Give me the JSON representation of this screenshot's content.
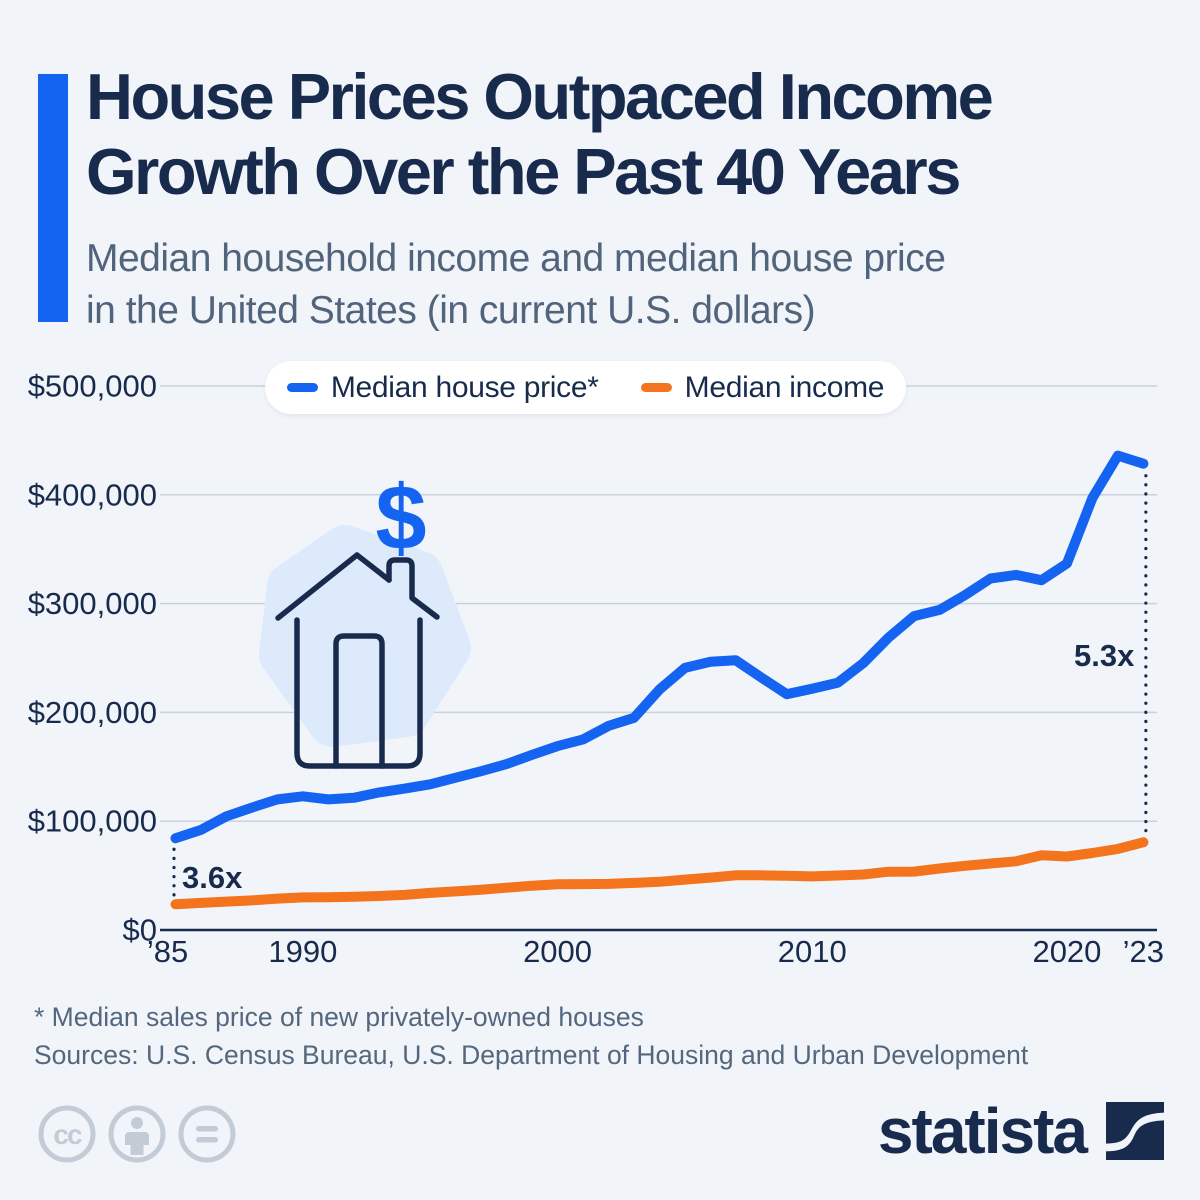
{
  "header": {
    "title_line1": "House Prices Outpaced Income",
    "title_line2": "Growth Over the Past 40 Years",
    "subtitle_line1": "Median household income and median house price",
    "subtitle_line2": "in the United States (in current U.S. dollars)"
  },
  "legend": {
    "items": [
      {
        "label": "Median house price*"
      },
      {
        "label": "Median income"
      }
    ]
  },
  "chart_data": {
    "type": "line",
    "title": "Median household income and median house price in the United States (in current U.S. dollars)",
    "x": [
      1985,
      1986,
      1987,
      1988,
      1989,
      1990,
      1991,
      1992,
      1993,
      1994,
      1995,
      1996,
      1997,
      1998,
      1999,
      2000,
      2001,
      2002,
      2003,
      2004,
      2005,
      2006,
      2007,
      2008,
      2009,
      2010,
      2011,
      2012,
      2013,
      2014,
      2015,
      2016,
      2017,
      2018,
      2019,
      2020,
      2021,
      2022,
      2023
    ],
    "series": [
      {
        "name": "Median house price*",
        "color": "#1464f1",
        "values": [
          84300,
          92000,
          104500,
          112500,
          120000,
          122900,
          120000,
          121500,
          126500,
          130000,
          133900,
          140000,
          146000,
          152500,
          161000,
          169000,
          175200,
          187600,
          195000,
          221000,
          240900,
          246500,
          247900,
          232100,
          216700,
          221800,
          227200,
          245200,
          268900,
          288500,
          294200,
          307800,
          323100,
          326400,
          321500,
          336900,
          397100,
          436000,
          428600
        ]
      },
      {
        "name": "Median income",
        "color": "#f4731d",
        "values": [
          23618,
          24897,
          26061,
          27225,
          28906,
          29943,
          30126,
          30636,
          31241,
          32264,
          34076,
          35492,
          37005,
          38885,
          40696,
          41990,
          42228,
          42409,
          43318,
          44334,
          46326,
          48201,
          50233,
          50303,
          49777,
          49276,
          50054,
          51017,
          53585,
          53657,
          56516,
          59039,
          61136,
          63179,
          68703,
          67521,
          70784,
          74580,
          80610
        ]
      }
    ],
    "ylim": [
      0,
      500000
    ],
    "yticks": [
      0,
      100000,
      200000,
      300000,
      400000,
      500000
    ],
    "ytick_labels": [
      "$0",
      "$100,000",
      "$200,000",
      "$300,000",
      "$400,000",
      "$500,000"
    ],
    "xtick_years": [
      1985,
      1990,
      2000,
      2010,
      2020,
      2023
    ],
    "xtick_labels": [
      "’85",
      "1990",
      "2000",
      "2010",
      "2020",
      "’23"
    ],
    "grid": true,
    "legend_position": "top-center",
    "annotations": [
      {
        "text": "3.6x",
        "year": 1985
      },
      {
        "text": "5.3x",
        "year": 2023
      }
    ]
  },
  "footer": {
    "footnote": "* Median sales price of new privately-owned houses",
    "sources": "Sources: U.S. Census Bureau, U.S. Department of Housing and Urban Development"
  },
  "branding": {
    "logo_text": "statista"
  },
  "colors": {
    "house_price_line": "#1464f1",
    "income_line": "#f4731d",
    "navy": "#182b4d",
    "slate": "#51647c",
    "background": "#f1f5f9",
    "gridline": "#c9d1db",
    "house_blob": "#ddeafb",
    "cc_gray": "#c3ccd6"
  }
}
